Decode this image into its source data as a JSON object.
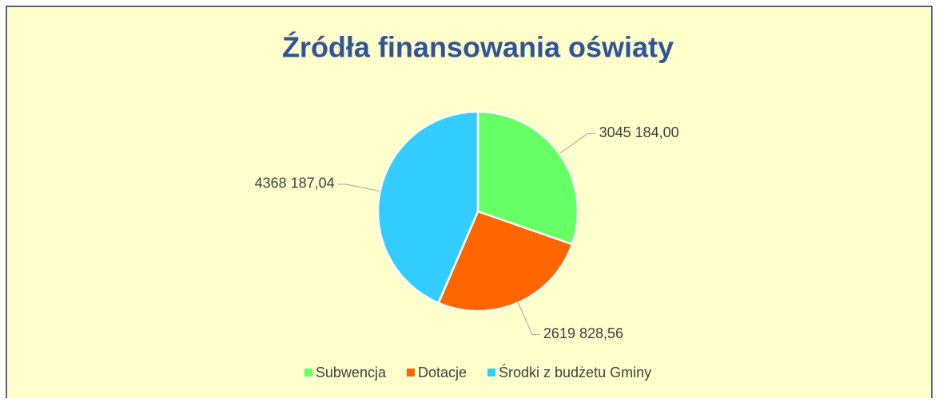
{
  "chart_data": {
    "type": "pie",
    "title": "Źródła finansowania oświaty",
    "categories": [
      "Subwencja",
      "Dotacje",
      "Środki z budżetu Gminy"
    ],
    "values": [
      3045184.0,
      2619828.56,
      4368187.04
    ],
    "value_labels": [
      "3045 184,00",
      "2619 828,56",
      "4368 187,04"
    ],
    "colors": [
      "#66ff66",
      "#ff6600",
      "#33ccff"
    ],
    "legend": "bottom"
  }
}
